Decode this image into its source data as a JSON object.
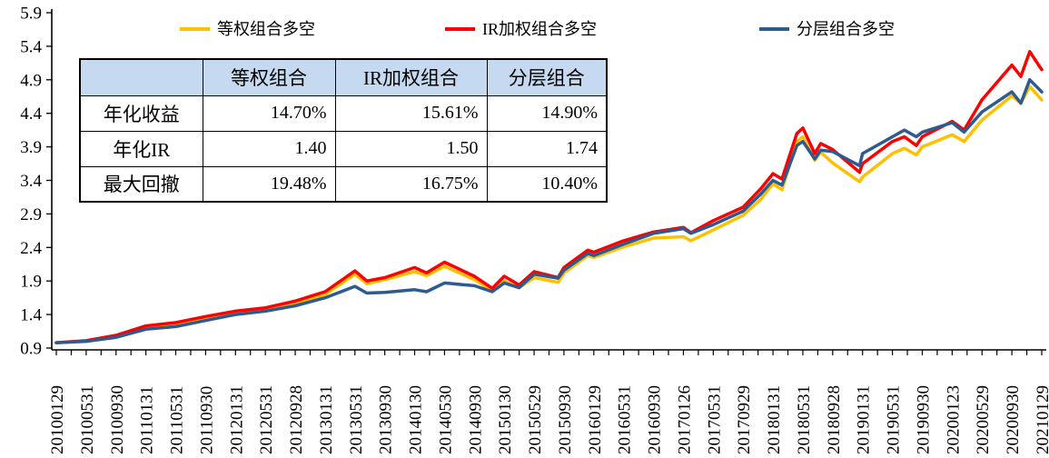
{
  "legend": {
    "items": [
      {
        "label": "等权组合多空",
        "color": "#FFC000"
      },
      {
        "label": "IR加权组合多空",
        "color": "#FF0000"
      },
      {
        "label": "分层组合多空",
        "color": "#2E5B8F"
      }
    ]
  },
  "stats_table": {
    "header_bg": "#C5D9F1",
    "header": [
      "",
      "等权组合",
      "IR加权组合",
      "分层组合"
    ],
    "rows": [
      {
        "label": "年化收益",
        "values": [
          "14.70%",
          "15.61%",
          "14.90%"
        ]
      },
      {
        "label": "年化IR",
        "values": [
          "1.40",
          "1.50",
          "1.74"
        ]
      },
      {
        "label": "最大回撤",
        "values": [
          "19.48%",
          "16.75%",
          "10.40%"
        ]
      }
    ]
  },
  "chart_data": {
    "type": "line",
    "title": "",
    "xlabel": "",
    "ylabel": "",
    "ylim": [
      0.9,
      5.9
    ],
    "y_ticks": [
      0.9,
      1.4,
      1.9,
      2.4,
      2.9,
      3.4,
      3.9,
      4.4,
      4.9,
      5.4,
      5.9
    ],
    "grid": false,
    "legend_position": "top",
    "x_tick_labels": [
      "20100129",
      "20100531",
      "20100930",
      "20110131",
      "20110531",
      "20110930",
      "20120131",
      "20120531",
      "20120928",
      "20130131",
      "20130531",
      "20130930",
      "20140130",
      "20140530",
      "20140930",
      "20150130",
      "20150529",
      "20150930",
      "20160129",
      "20160531",
      "20160930",
      "20170126",
      "20170531",
      "20170929",
      "20180131",
      "20180531",
      "20180928",
      "20190131",
      "20190531",
      "20190930",
      "20200123",
      "20200529",
      "20200930",
      "20210129"
    ],
    "x_note": "series points use fractional index into x_tick_labels (ticks are 4 months apart; minor axis ticks every 2 months)",
    "series": [
      {
        "name": "等权组合多空",
        "color": "#FFC000",
        "points": [
          [
            0,
            0.98
          ],
          [
            1,
            1.0
          ],
          [
            2,
            1.07
          ],
          [
            3,
            1.21
          ],
          [
            4,
            1.25
          ],
          [
            5,
            1.34
          ],
          [
            6,
            1.42
          ],
          [
            7,
            1.47
          ],
          [
            8,
            1.56
          ],
          [
            9,
            1.7
          ],
          [
            10,
            2.0
          ],
          [
            10.4,
            1.86
          ],
          [
            11,
            1.92
          ],
          [
            12,
            2.04
          ],
          [
            12.4,
            1.98
          ],
          [
            13,
            2.12
          ],
          [
            14,
            1.92
          ],
          [
            14.6,
            1.76
          ],
          [
            15,
            1.9
          ],
          [
            15.5,
            1.8
          ],
          [
            16,
            1.95
          ],
          [
            16.8,
            1.88
          ],
          [
            17,
            2.02
          ],
          [
            17.8,
            2.28
          ],
          [
            18,
            2.25
          ],
          [
            19,
            2.41
          ],
          [
            20,
            2.54
          ],
          [
            21,
            2.56
          ],
          [
            21.25,
            2.5
          ],
          [
            22,
            2.66
          ],
          [
            23,
            2.88
          ],
          [
            23.6,
            3.12
          ],
          [
            24,
            3.35
          ],
          [
            24.3,
            3.26
          ],
          [
            24.8,
            3.98
          ],
          [
            25,
            4.05
          ],
          [
            25.4,
            3.7
          ],
          [
            25.6,
            3.82
          ],
          [
            26,
            3.66
          ],
          [
            26.9,
            3.38
          ],
          [
            27,
            3.45
          ],
          [
            28,
            3.8
          ],
          [
            28.4,
            3.88
          ],
          [
            28.8,
            3.78
          ],
          [
            29,
            3.9
          ],
          [
            30,
            4.08
          ],
          [
            30.4,
            3.98
          ],
          [
            31,
            4.3
          ],
          [
            32,
            4.66
          ],
          [
            32.3,
            4.55
          ],
          [
            32.6,
            4.8
          ],
          [
            33,
            4.6
          ]
        ]
      },
      {
        "name": "IR加权组合多空",
        "color": "#FF0000",
        "points": [
          [
            0,
            0.98
          ],
          [
            1,
            1.01
          ],
          [
            2,
            1.09
          ],
          [
            3,
            1.23
          ],
          [
            4,
            1.28
          ],
          [
            5,
            1.37
          ],
          [
            6,
            1.45
          ],
          [
            7,
            1.5
          ],
          [
            8,
            1.6
          ],
          [
            9,
            1.74
          ],
          [
            10,
            2.05
          ],
          [
            10.4,
            1.9
          ],
          [
            11,
            1.95
          ],
          [
            12,
            2.1
          ],
          [
            12.4,
            2.02
          ],
          [
            13,
            2.18
          ],
          [
            14,
            1.97
          ],
          [
            14.6,
            1.79
          ],
          [
            15,
            1.97
          ],
          [
            15.5,
            1.84
          ],
          [
            16,
            2.04
          ],
          [
            16.8,
            1.95
          ],
          [
            17,
            2.1
          ],
          [
            17.8,
            2.36
          ],
          [
            18,
            2.33
          ],
          [
            19,
            2.5
          ],
          [
            20,
            2.63
          ],
          [
            21,
            2.7
          ],
          [
            21.25,
            2.62
          ],
          [
            22,
            2.8
          ],
          [
            23,
            3.0
          ],
          [
            23.6,
            3.28
          ],
          [
            24,
            3.5
          ],
          [
            24.3,
            3.42
          ],
          [
            24.8,
            4.1
          ],
          [
            25,
            4.18
          ],
          [
            25.4,
            3.8
          ],
          [
            25.6,
            3.95
          ],
          [
            26,
            3.86
          ],
          [
            26.9,
            3.52
          ],
          [
            27,
            3.65
          ],
          [
            28,
            3.98
          ],
          [
            28.4,
            4.05
          ],
          [
            28.8,
            3.92
          ],
          [
            29,
            4.05
          ],
          [
            30,
            4.28
          ],
          [
            30.4,
            4.15
          ],
          [
            31,
            4.6
          ],
          [
            32,
            5.12
          ],
          [
            32.3,
            4.95
          ],
          [
            32.6,
            5.32
          ],
          [
            33,
            5.05
          ]
        ]
      },
      {
        "name": "分层组合多空",
        "color": "#2E5B8F",
        "points": [
          [
            0,
            0.98
          ],
          [
            1,
            1.0
          ],
          [
            2,
            1.06
          ],
          [
            3,
            1.18
          ],
          [
            4,
            1.22
          ],
          [
            5,
            1.31
          ],
          [
            6,
            1.4
          ],
          [
            7,
            1.45
          ],
          [
            8,
            1.53
          ],
          [
            9,
            1.65
          ],
          [
            10,
            1.82
          ],
          [
            10.4,
            1.72
          ],
          [
            11,
            1.73
          ],
          [
            12,
            1.77
          ],
          [
            12.4,
            1.74
          ],
          [
            13,
            1.87
          ],
          [
            14,
            1.83
          ],
          [
            14.6,
            1.74
          ],
          [
            15,
            1.87
          ],
          [
            15.5,
            1.8
          ],
          [
            16,
            2.0
          ],
          [
            16.8,
            1.94
          ],
          [
            17,
            2.06
          ],
          [
            17.8,
            2.31
          ],
          [
            18,
            2.28
          ],
          [
            19,
            2.45
          ],
          [
            20,
            2.61
          ],
          [
            21,
            2.68
          ],
          [
            21.25,
            2.61
          ],
          [
            22,
            2.74
          ],
          [
            23,
            2.94
          ],
          [
            23.6,
            3.2
          ],
          [
            24,
            3.4
          ],
          [
            24.3,
            3.33
          ],
          [
            24.8,
            3.92
          ],
          [
            25,
            3.98
          ],
          [
            25.4,
            3.72
          ],
          [
            25.6,
            3.85
          ],
          [
            26,
            3.83
          ],
          [
            26.9,
            3.62
          ],
          [
            27,
            3.8
          ],
          [
            28,
            4.05
          ],
          [
            28.4,
            4.15
          ],
          [
            28.8,
            4.05
          ],
          [
            29,
            4.12
          ],
          [
            30,
            4.26
          ],
          [
            30.4,
            4.12
          ],
          [
            31,
            4.42
          ],
          [
            32,
            4.72
          ],
          [
            32.3,
            4.55
          ],
          [
            32.6,
            4.9
          ],
          [
            33,
            4.72
          ]
        ]
      }
    ]
  }
}
